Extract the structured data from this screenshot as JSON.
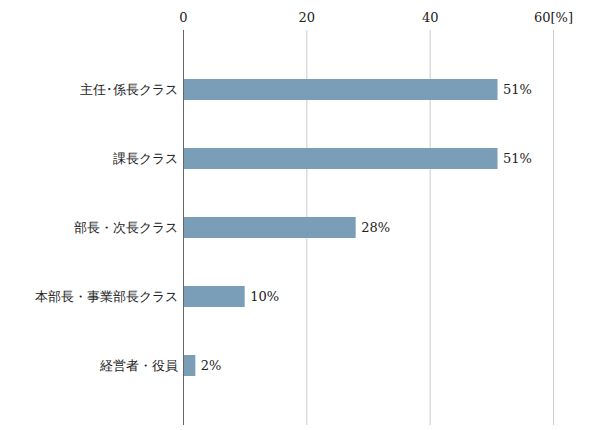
{
  "chart_data": {
    "type": "bar",
    "orientation": "horizontal",
    "categories": [
      "主任･係長クラス",
      "課長クラス",
      "部長・次長クラス",
      "本部長・事業部長クラス",
      "経営者・役員"
    ],
    "values": [
      51,
      51,
      28,
      10,
      2
    ],
    "value_labels": [
      "51%",
      "51%",
      "28%",
      "10%",
      "2%"
    ],
    "data_labels": true,
    "color": "#7a9db8",
    "xlim": [
      0,
      60
    ],
    "xticks": [
      0,
      20,
      40,
      {
        "value": 60,
        "label": "60[%]"
      }
    ],
    "grid": true
  }
}
